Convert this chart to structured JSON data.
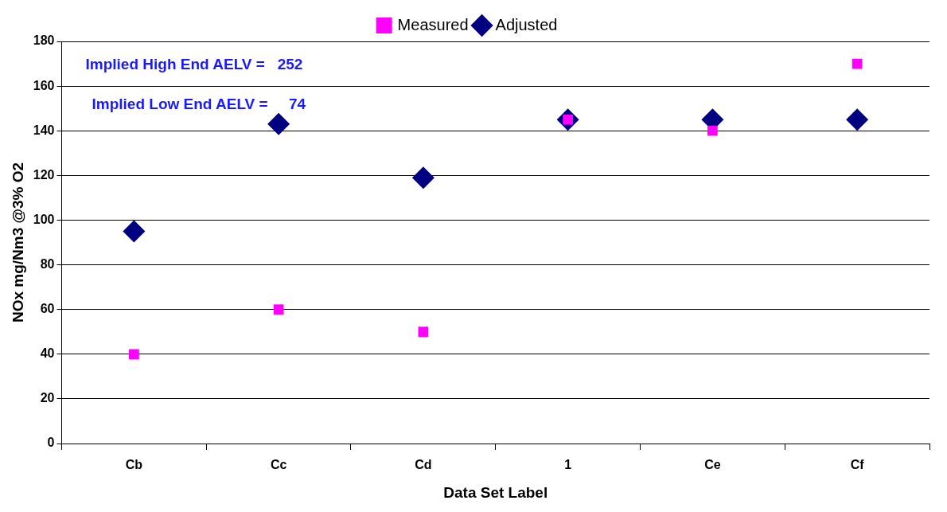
{
  "chart_data": {
    "type": "scatter",
    "xlabel": "Data Set Label",
    "ylabel": "NOx mg/Nm3 @3% O2",
    "categories": [
      "Cb",
      "Cc",
      "Cd",
      "1",
      "Ce",
      "Cf"
    ],
    "series": [
      {
        "name": "Measured",
        "color": "#ff00ff",
        "marker": "square",
        "values": [
          40,
          60,
          50,
          145,
          140,
          170
        ]
      },
      {
        "name": "Adjusted",
        "color": "#000080",
        "marker": "diamond",
        "values": [
          95,
          143,
          119,
          145,
          145,
          145
        ]
      }
    ],
    "ylim": [
      0,
      180
    ],
    "yticks": [
      0,
      20,
      40,
      60,
      80,
      100,
      120,
      140,
      160,
      180
    ],
    "grid": "y",
    "legend": "top",
    "annotations": [
      "Implied High End AELV =   252",
      "Implied Low End AELV =     74"
    ]
  }
}
